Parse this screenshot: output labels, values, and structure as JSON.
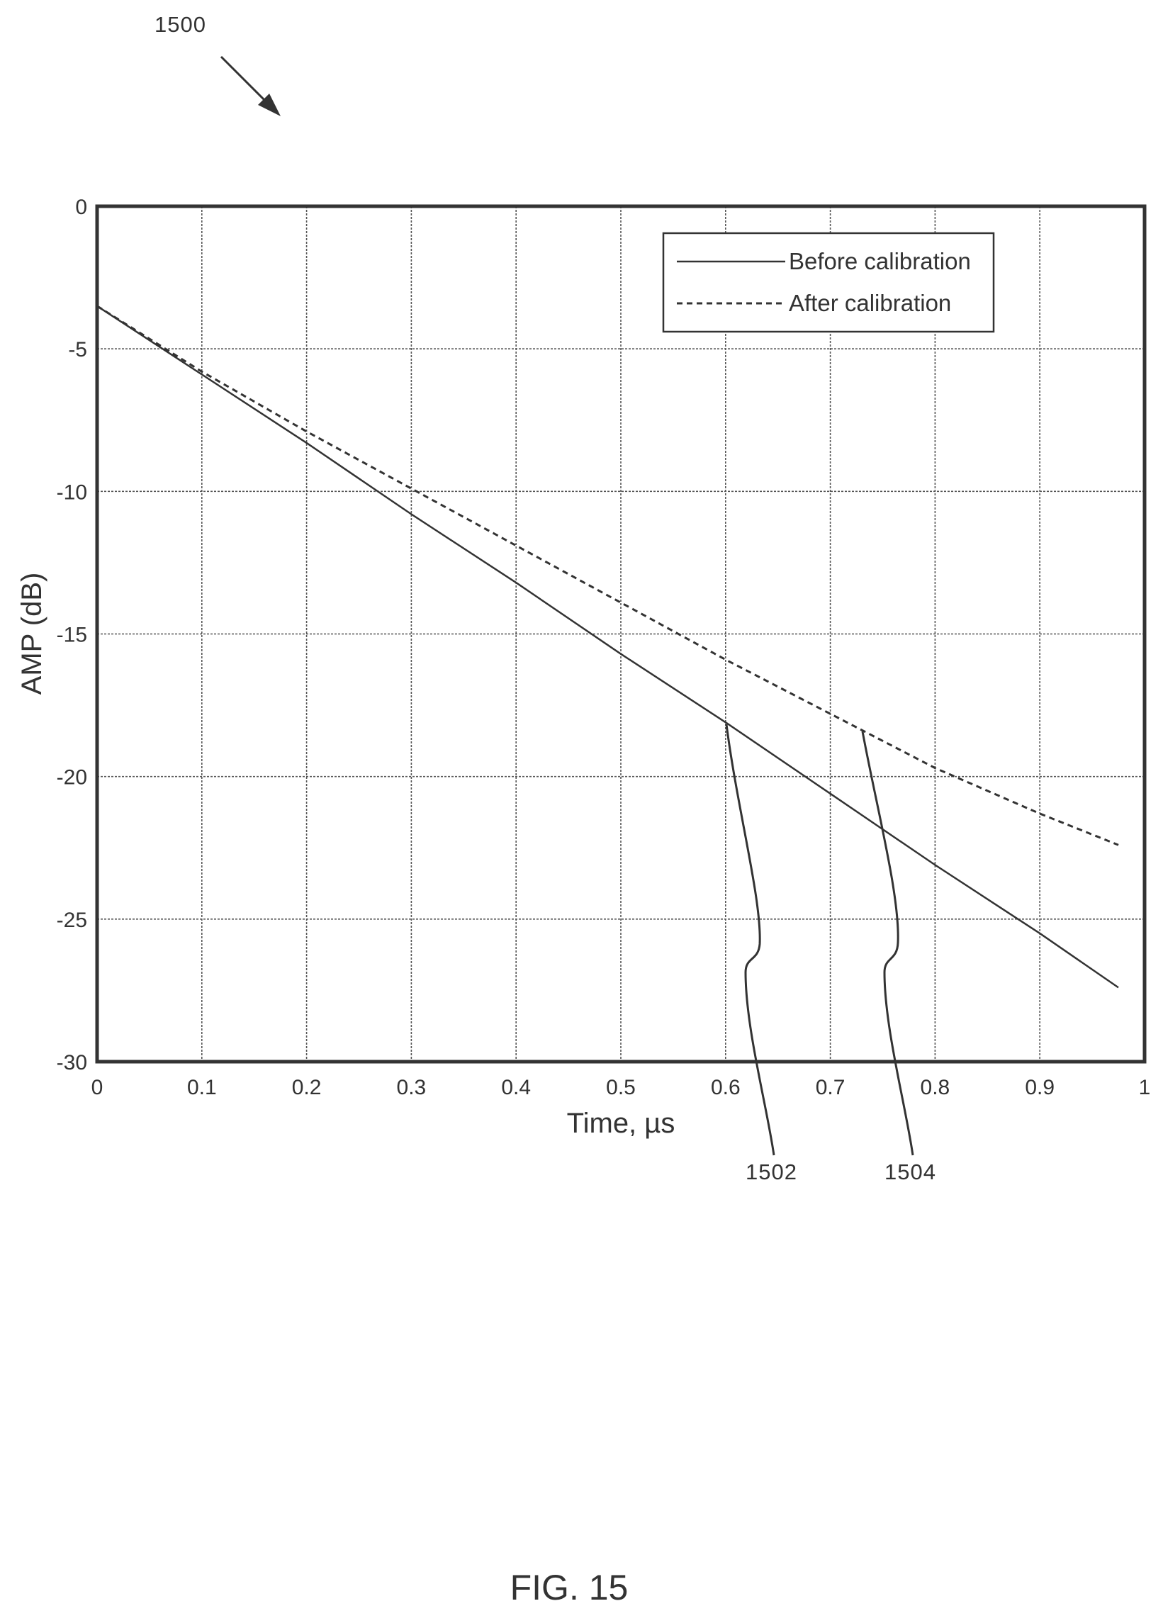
{
  "figure": {
    "ref_number": "1500",
    "caption": "FIG. 15",
    "callouts": [
      {
        "label": "1502",
        "x": 0.6,
        "y": -18.4
      },
      {
        "label": "1504",
        "x": 0.73,
        "y": -18.6
      }
    ]
  },
  "chart_data": {
    "type": "line",
    "xlabel": "Time, µs",
    "ylabel": "AMP (dB)",
    "xlim": [
      0,
      1
    ],
    "ylim": [
      -30,
      0
    ],
    "x_ticks": [
      0,
      0.1,
      0.2,
      0.3,
      0.4,
      0.5,
      0.6,
      0.7,
      0.8,
      0.9,
      1
    ],
    "x_tick_labels": [
      "0",
      "0.1",
      "0.2",
      "0.3",
      "0.4",
      "0.5",
      "0.6",
      "0.7",
      "0.8",
      "0.9",
      "1"
    ],
    "y_ticks": [
      0,
      -5,
      -10,
      -15,
      -20,
      -25,
      -30
    ],
    "y_tick_labels": [
      "0",
      "-5",
      "-10",
      "-15",
      "-20",
      "-25",
      "-30"
    ],
    "grid": true,
    "legend_position": "top-right",
    "series": [
      {
        "name": "Before calibration",
        "style": "solid",
        "color": "#333333",
        "x": [
          0,
          0.1,
          0.2,
          0.3,
          0.4,
          0.5,
          0.6,
          0.7,
          0.8,
          0.9,
          0.975
        ],
        "y": [
          -3.5,
          -5.9,
          -8.3,
          -10.8,
          -13.2,
          -15.7,
          -18.1,
          -20.6,
          -23.1,
          -25.5,
          -27.4
        ]
      },
      {
        "name": "After calibration",
        "style": "dashed",
        "color": "#333333",
        "x": [
          0,
          0.1,
          0.2,
          0.3,
          0.4,
          0.5,
          0.6,
          0.7,
          0.8,
          0.9,
          0.975
        ],
        "y": [
          -3.5,
          -5.8,
          -7.9,
          -9.9,
          -11.9,
          -13.9,
          -15.9,
          -17.8,
          -19.7,
          -21.3,
          -22.4
        ]
      }
    ]
  }
}
